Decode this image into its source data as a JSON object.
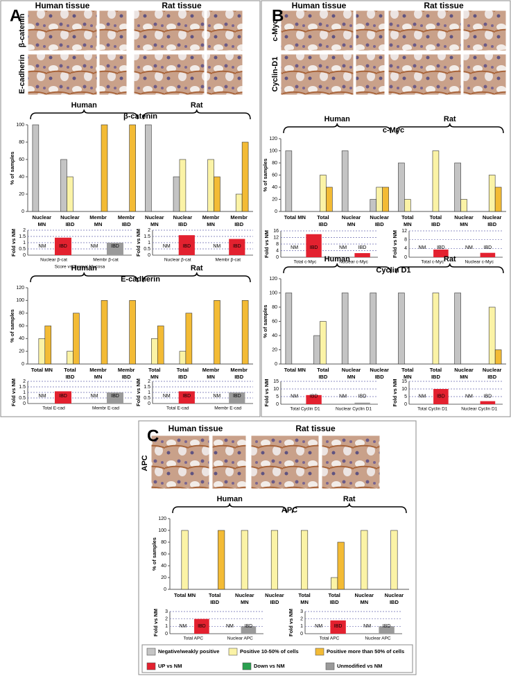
{
  "panels": [
    {
      "letter": "A",
      "tissue_labels": [
        "Human tissue",
        "Rat tissue"
      ],
      "row_labels": [
        "β-catenin",
        "E-cadherin"
      ]
    },
    {
      "letter": "B",
      "tissue_labels": [
        "Human tissue",
        "Rat tissue"
      ],
      "row_labels": [
        "c-Myc",
        "Cyclin-D1"
      ]
    },
    {
      "letter": "C",
      "tissue_labels": [
        "Human tissue",
        "Rat tissue"
      ],
      "row_labels": [
        "APC"
      ]
    }
  ],
  "legend": {
    "bars": [
      {
        "name": "Negative/weakly positive",
        "color": "#c4c4c4"
      },
      {
        "name": "Positive 10-50% of cells",
        "color": "#fbf3a6"
      },
      {
        "name": "Positive more than 50% of cells",
        "color": "#f3bb35"
      }
    ],
    "fold": [
      {
        "name": "UP vs NM",
        "color": "#e3212f"
      },
      {
        "name": "Down vs NM",
        "color": "#2aa04f"
      },
      {
        "name": "Unmodified vs NM",
        "color": "#9a9a9a"
      }
    ]
  },
  "chart_data": [
    {
      "type": "bar",
      "title": "β-catenin",
      "group_labels": [
        "Human",
        "Rat"
      ],
      "y_label": "% of samples",
      "categories": [
        [
          "Nuclear",
          "MN"
        ],
        [
          "Nuclear",
          "IBD"
        ],
        [
          "Membr",
          "MN"
        ],
        [
          "Membr",
          "IBD"
        ],
        [
          "Nuclear",
          "MN"
        ],
        [
          "Nuclear",
          "IBD"
        ],
        [
          "Membr",
          "MN"
        ],
        [
          "Membr",
          "IBD"
        ]
      ],
      "series": [
        {
          "values": [
            100,
            60,
            null,
            null,
            100,
            40,
            null,
            null
          ]
        },
        {
          "values": [
            null,
            40,
            null,
            null,
            null,
            60,
            60,
            20
          ]
        },
        {
          "values": [
            null,
            null,
            100,
            100,
            null,
            null,
            40,
            80
          ]
        }
      ],
      "ylim": [
        0,
        100
      ],
      "yticks": [
        0,
        20,
        40,
        60,
        80,
        100
      ]
    },
    {
      "type": "column",
      "y_label": "Fold vs NM",
      "categories": [
        "Nuclear β-cat",
        "Membr β-cat"
      ],
      "bar_labels": [
        "NM",
        "IBD"
      ],
      "subtitle": "Score vs Normal Mucosa",
      "values": [
        1.4,
        1
      ],
      "colors": [
        "#e3212f",
        "#9a9a9a"
      ],
      "ylim": [
        0,
        2
      ],
      "yticks": [
        0,
        0.5,
        1,
        1.5,
        2
      ]
    },
    {
      "type": "column",
      "y_label": "Fold vs NM",
      "categories": [
        "Nuclear β-cat",
        "Membr β-cat"
      ],
      "bar_labels": [
        "NM",
        "IBD"
      ],
      "values": [
        1.6,
        1.3
      ],
      "colors": [
        "#e3212f",
        "#e3212f"
      ],
      "ylim": [
        0,
        2
      ],
      "yticks": [
        0,
        0.5,
        1,
        1.5,
        2
      ]
    },
    {
      "type": "bar",
      "title": "E-cadherin",
      "group_labels": [
        "Human",
        "Rat"
      ],
      "y_label": "% of samples",
      "categories": [
        [
          "Total MN"
        ],
        [
          "Total",
          "IBD"
        ],
        [
          "Membr",
          "MN"
        ],
        [
          "Membr",
          "IBD"
        ],
        [
          "Total",
          "MN"
        ],
        [
          "Total",
          "IBD"
        ],
        [
          "Membr",
          "MN"
        ],
        [
          "Membr",
          "IBD"
        ]
      ],
      "series": [
        {
          "values": [
            null,
            null,
            null,
            null,
            null,
            null,
            null,
            null
          ]
        },
        {
          "values": [
            40,
            20,
            null,
            null,
            40,
            20,
            null,
            null
          ]
        },
        {
          "values": [
            60,
            80,
            100,
            100,
            60,
            80,
            100,
            100
          ]
        }
      ],
      "ylim": [
        0,
        120
      ],
      "yticks": [
        0,
        20,
        40,
        60,
        80,
        100,
        120
      ]
    },
    {
      "type": "column",
      "y_label": "Fold vs NM",
      "categories": [
        "Total E-cad",
        "Membr E-cad"
      ],
      "bar_labels": [
        "NM",
        "IBD"
      ],
      "values": [
        1.1,
        1
      ],
      "colors": [
        "#e3212f",
        "#9a9a9a"
      ],
      "ylim": [
        0,
        2
      ],
      "yticks": [
        0,
        0.5,
        1,
        1.5,
        2
      ]
    },
    {
      "type": "column",
      "y_label": "Fold vs NM",
      "categories": [
        "Total E-cad",
        "Membr E-cad"
      ],
      "bar_labels": [
        "NM",
        "IBD"
      ],
      "values": [
        1.1,
        1
      ],
      "colors": [
        "#e3212f",
        "#9a9a9a"
      ],
      "ylim": [
        0,
        2
      ],
      "yticks": [
        0,
        0.5,
        1,
        1.5,
        2
      ]
    },
    {
      "type": "bar",
      "title": "c-Myc",
      "group_labels": [
        "Human",
        "Rat"
      ],
      "y_label": "% of samples",
      "categories": [
        [
          "Total MN"
        ],
        [
          "Total",
          "IBD"
        ],
        [
          "Nuclear",
          "MN"
        ],
        [
          "Nuclear",
          "IBD"
        ],
        [
          "Total",
          "MN"
        ],
        [
          "Total",
          "IBD"
        ],
        [
          "Nuclear",
          "MN"
        ],
        [
          "Nuclear",
          "IBD"
        ]
      ],
      "series": [
        {
          "values": [
            100,
            null,
            100,
            20,
            80,
            null,
            80,
            null
          ]
        },
        {
          "values": [
            null,
            60,
            null,
            40,
            20,
            100,
            20,
            60
          ]
        },
        {
          "values": [
            null,
            40,
            null,
            40,
            null,
            null,
            null,
            40
          ]
        }
      ],
      "ylim": [
        0,
        120
      ],
      "yticks": [
        0,
        20,
        40,
        60,
        80,
        100,
        120
      ]
    },
    {
      "type": "column",
      "y_label": "Fold vs NM",
      "categories": [
        "Total c-Myc",
        "Nuclear c-Myc"
      ],
      "bar_labels": [
        "NM",
        "IBD"
      ],
      "values": [
        14,
        2.5
      ],
      "colors": [
        "#e3212f",
        "#e3212f"
      ],
      "ylim": [
        0,
        16
      ],
      "yticks": [
        0,
        4,
        8,
        12,
        16
      ]
    },
    {
      "type": "column",
      "y_label": "Fold vs NM",
      "categories": [
        "Total c-Myc",
        "Nuclear c-Myc"
      ],
      "bar_labels": [
        "NM",
        "IBD"
      ],
      "values": [
        3.5,
        2
      ],
      "colors": [
        "#e3212f",
        "#e3212f"
      ],
      "ylim": [
        0,
        12
      ],
      "yticks": [
        0,
        4,
        8,
        12
      ]
    },
    {
      "type": "bar",
      "title": "Cyclin D1",
      "group_labels": [
        "Human",
        "Rat"
      ],
      "y_label": "% of samples",
      "categories": [
        [
          "Total MN"
        ],
        [
          "Total",
          "IBD"
        ],
        [
          "Nuclear",
          "MN"
        ],
        [
          "Nuclear",
          "IBD"
        ],
        [
          "Total",
          "MN"
        ],
        [
          "Total",
          "IBD"
        ],
        [
          "Nuclear",
          "MN"
        ],
        [
          "Nuclear",
          "IBD"
        ]
      ],
      "series": [
        {
          "values": [
            100,
            40,
            100,
            100,
            100,
            null,
            100,
            null
          ]
        },
        {
          "values": [
            null,
            60,
            null,
            null,
            null,
            100,
            null,
            80
          ]
        },
        {
          "values": [
            null,
            null,
            null,
            null,
            null,
            null,
            null,
            20
          ]
        }
      ],
      "ylim": [
        0,
        120
      ],
      "yticks": [
        0,
        20,
        40,
        60,
        80,
        100,
        120
      ]
    },
    {
      "type": "column",
      "y_label": "Fold vs NM",
      "categories": [
        "Total Cyclin D1",
        "Nuclear Cyclin D1"
      ],
      "bar_labels": [
        "NM",
        "IBD"
      ],
      "values": [
        6,
        1
      ],
      "colors": [
        "#e3212f",
        "#9a9a9a"
      ],
      "ylim": [
        0,
        15
      ],
      "yticks": [
        0,
        5,
        10,
        15
      ]
    },
    {
      "type": "column",
      "y_label": "Fold vs NM",
      "categories": [
        "Total Cyclin D1",
        "Nuclear Cyclin D1"
      ],
      "bar_labels": [
        "NM",
        "IBD"
      ],
      "values": [
        10,
        2
      ],
      "colors": [
        "#e3212f",
        "#e3212f"
      ],
      "ylim": [
        0,
        15
      ],
      "yticks": [
        0,
        5,
        10,
        15
      ]
    },
    {
      "type": "bar",
      "title": "APC",
      "group_labels": [
        "Human",
        "Rat"
      ],
      "y_label": "% of samples",
      "categories": [
        [
          "Total MN"
        ],
        [
          "Total",
          "IBD"
        ],
        [
          "Nuclear",
          "MN"
        ],
        [
          "Nuclear",
          "IBD"
        ],
        [
          "Total",
          "MN"
        ],
        [
          "Total",
          "IBD"
        ],
        [
          "Nuclear",
          "MN"
        ],
        [
          "Nuclear",
          "IBD"
        ]
      ],
      "series": [
        {
          "values": [
            null,
            null,
            null,
            null,
            null,
            null,
            null,
            null
          ]
        },
        {
          "values": [
            100,
            null,
            100,
            100,
            100,
            20,
            100,
            100
          ]
        },
        {
          "values": [
            null,
            100,
            null,
            null,
            null,
            80,
            null,
            null
          ]
        }
      ],
      "ylim": [
        0,
        120
      ],
      "yticks": [
        0,
        20,
        40,
        60,
        80,
        100,
        120
      ]
    },
    {
      "type": "column",
      "y_label": "Fold vs NM",
      "categories": [
        "Total APC",
        "Nuclear APC"
      ],
      "bar_labels": [
        "NM",
        "IBD"
      ],
      "values": [
        2,
        1
      ],
      "colors": [
        "#e3212f",
        "#9a9a9a"
      ],
      "ylim": [
        0,
        3
      ],
      "yticks": [
        0,
        1,
        2,
        3
      ]
    },
    {
      "type": "column",
      "y_label": "Fold vs NM",
      "categories": [
        "Total APC",
        "Nuclear APC"
      ],
      "bar_labels": [
        "NM",
        "IBD"
      ],
      "values": [
        1.8,
        1
      ],
      "colors": [
        "#e3212f",
        "#9a9a9a"
      ],
      "ylim": [
        0,
        3
      ],
      "yticks": [
        0,
        1,
        2,
        3
      ]
    }
  ]
}
